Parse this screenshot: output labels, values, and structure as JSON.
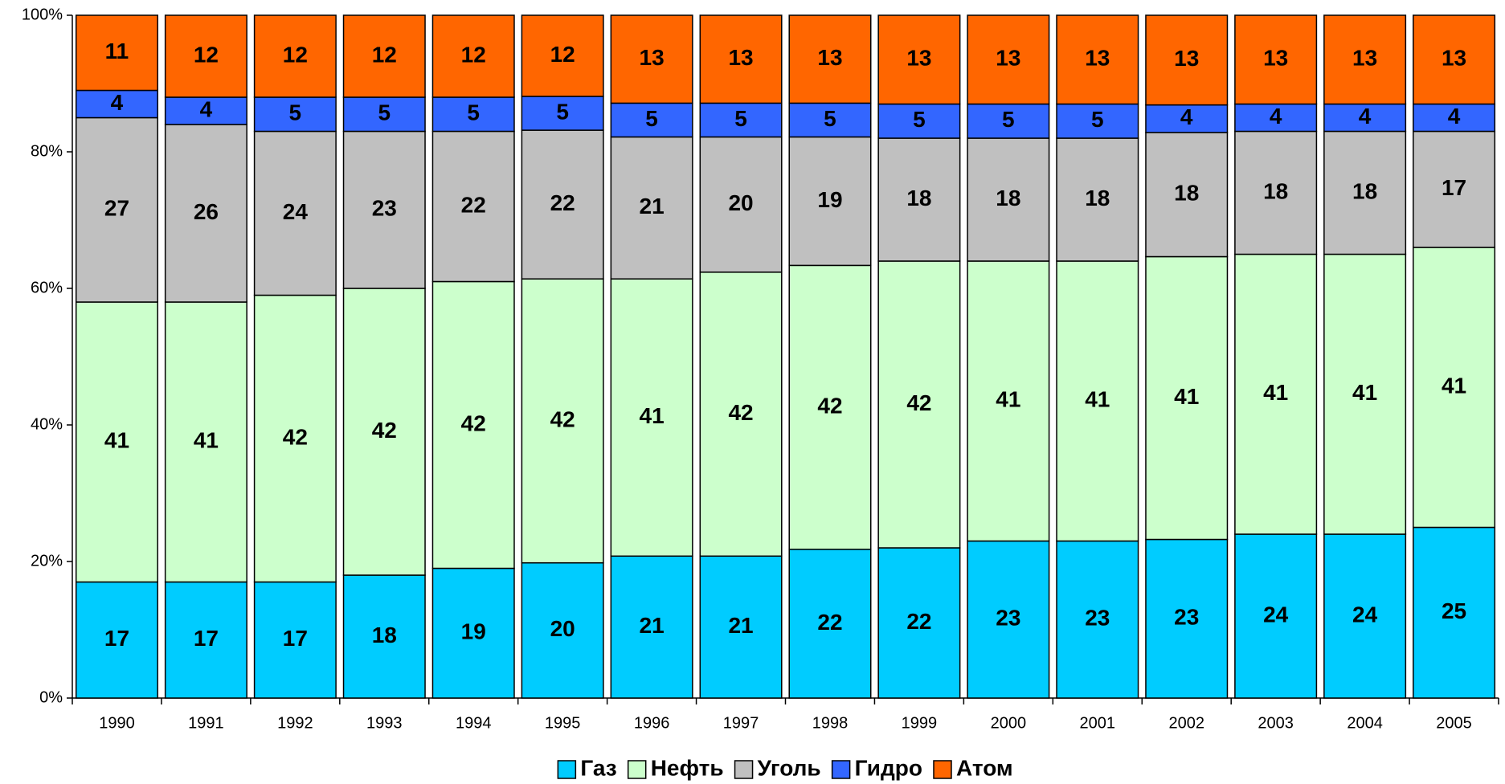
{
  "chart_data": {
    "type": "bar",
    "stacking": "percent",
    "categories": [
      "1990",
      "1991",
      "1992",
      "1993",
      "1994",
      "1995",
      "1996",
      "1997",
      "1998",
      "1999",
      "2000",
      "2001",
      "2002",
      "2003",
      "2004",
      "2005"
    ],
    "series": [
      {
        "name": "Газ",
        "color": "#00ccff",
        "values": [
          17,
          17,
          17,
          18,
          19,
          20,
          21,
          21,
          22,
          22,
          23,
          23,
          23,
          24,
          24,
          25
        ]
      },
      {
        "name": "Нефть",
        "color": "#ccffcc",
        "values": [
          41,
          41,
          42,
          42,
          42,
          42,
          41,
          42,
          42,
          42,
          41,
          41,
          41,
          41,
          41,
          41
        ]
      },
      {
        "name": "Уголь",
        "color": "#c0c0c0",
        "values": [
          27,
          26,
          24,
          23,
          22,
          22,
          21,
          20,
          19,
          18,
          18,
          18,
          18,
          18,
          18,
          17
        ]
      },
      {
        "name": "Гидро",
        "color": "#3366ff",
        "values": [
          4,
          4,
          5,
          5,
          5,
          5,
          5,
          5,
          5,
          5,
          5,
          5,
          4,
          4,
          4,
          4
        ]
      },
      {
        "name": "Атом",
        "color": "#ff6600",
        "values": [
          11,
          12,
          12,
          12,
          12,
          12,
          13,
          13,
          13,
          13,
          13,
          13,
          13,
          13,
          13,
          13
        ]
      }
    ],
    "ylim": [
      0,
      100
    ],
    "yticks": [
      {
        "value": 0,
        "label": "0%"
      },
      {
        "value": 20,
        "label": "20%"
      },
      {
        "value": 40,
        "label": "40%"
      },
      {
        "value": 60,
        "label": "60%"
      },
      {
        "value": 80,
        "label": "80%"
      },
      {
        "value": 100,
        "label": "100%"
      }
    ],
    "legend": "bottom"
  }
}
